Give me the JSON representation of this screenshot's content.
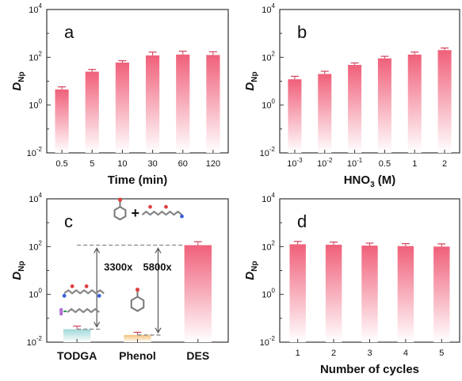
{
  "colors": {
    "bar_top": "#f0607a",
    "bar_bottom": "#ffffff",
    "axis": "#333333",
    "err": "#d0405a",
    "dash": "#888888"
  },
  "chart_data": [
    {
      "type": "bar",
      "panel_label": "a",
      "yscale": "log",
      "ylim": [
        0.01,
        10000
      ],
      "ylabel": "D",
      "ylabel_sub": "Np",
      "xlabel": "Time (min)",
      "categories": [
        "0.5",
        "5",
        "10",
        "30",
        "60",
        "120"
      ],
      "values": [
        4.5,
        25,
        60,
        120,
        130,
        125
      ],
      "errors": [
        1.3,
        6,
        12,
        45,
        50,
        45
      ]
    },
    {
      "type": "bar",
      "panel_label": "b",
      "yscale": "log",
      "ylim": [
        0.01,
        10000
      ],
      "ylabel": "D",
      "ylabel_sub": "Np",
      "xlabel": "HNO",
      "xlabel_sub": "3",
      "xlabel_suffix": " (M)",
      "categories": [
        "10",
        "10",
        "10",
        "0.5",
        "1",
        "2"
      ],
      "category_superscripts": [
        "-3",
        "-2",
        "-1",
        "",
        "",
        ""
      ],
      "values": [
        12,
        20,
        48,
        90,
        130,
        200
      ],
      "errors": [
        4,
        6,
        10,
        20,
        35,
        45
      ]
    },
    {
      "type": "bar",
      "panel_label": "c",
      "yscale": "log",
      "ylim": [
        0.01,
        10000
      ],
      "ylabel": "D",
      "ylabel_sub": "Np",
      "categories": [
        "TODGA",
        "Phenol",
        "DES"
      ],
      "values": [
        0.035,
        0.02,
        115
      ],
      "errors": [
        0.012,
        0.006,
        45
      ],
      "annotations": [
        "3300x",
        "5800x"
      ]
    },
    {
      "type": "bar",
      "panel_label": "d",
      "yscale": "log",
      "ylim": [
        0.01,
        10000
      ],
      "ylabel": "D",
      "ylabel_sub": "Np",
      "xlabel": "Number of cycles",
      "categories": [
        "1",
        "2",
        "3",
        "4",
        "5"
      ],
      "values": [
        125,
        120,
        110,
        105,
        100
      ],
      "errors": [
        40,
        35,
        30,
        28,
        30
      ]
    }
  ]
}
